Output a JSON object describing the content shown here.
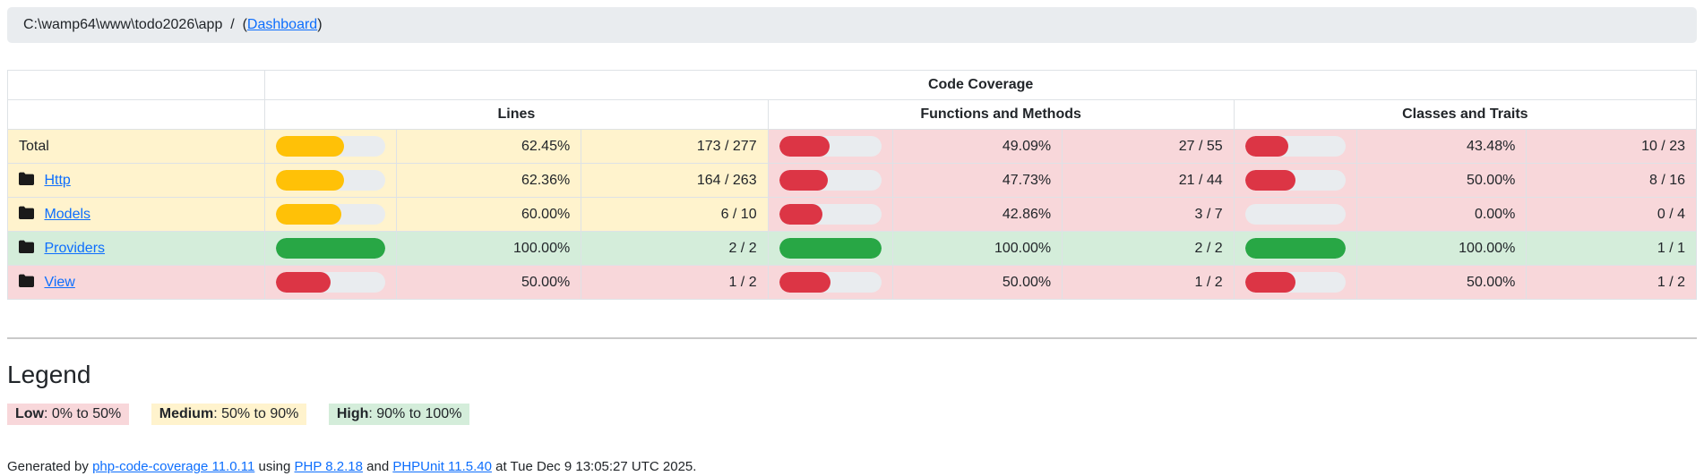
{
  "breadcrumb": {
    "path": "C:\\wamp64\\www\\todo2026\\app",
    "separator": "  /  ",
    "paren_open": "(",
    "link_label": "Dashboard",
    "paren_close": ")"
  },
  "table": {
    "header_group": "Code Coverage",
    "columns": [
      "Lines",
      "Functions and Methods",
      "Classes and Traits"
    ],
    "rows": [
      {
        "name": "Total",
        "is_link": false,
        "has_icon": false,
        "name_level": "medium",
        "lines": {
          "pct": "62.45%",
          "ratio": "173 / 277",
          "value": 62.45,
          "level": "medium"
        },
        "functions": {
          "pct": "49.09%",
          "ratio": "27 / 55",
          "value": 49.09,
          "level": "low"
        },
        "classes": {
          "pct": "43.48%",
          "ratio": "10 / 23",
          "value": 43.48,
          "level": "low"
        }
      },
      {
        "name": "Http",
        "is_link": true,
        "has_icon": true,
        "name_level": "medium",
        "lines": {
          "pct": "62.36%",
          "ratio": "164 / 263",
          "value": 62.36,
          "level": "medium"
        },
        "functions": {
          "pct": "47.73%",
          "ratio": "21 / 44",
          "value": 47.73,
          "level": "low"
        },
        "classes": {
          "pct": "50.00%",
          "ratio": "8 / 16",
          "value": 50.0,
          "level": "low"
        }
      },
      {
        "name": "Models",
        "is_link": true,
        "has_icon": true,
        "name_level": "medium",
        "lines": {
          "pct": "60.00%",
          "ratio": "6 / 10",
          "value": 60.0,
          "level": "medium"
        },
        "functions": {
          "pct": "42.86%",
          "ratio": "3 / 7",
          "value": 42.86,
          "level": "low"
        },
        "classes": {
          "pct": "0.00%",
          "ratio": "0 / 4",
          "value": 0.0,
          "level": "low"
        }
      },
      {
        "name": "Providers",
        "is_link": true,
        "has_icon": true,
        "name_level": "high",
        "lines": {
          "pct": "100.00%",
          "ratio": "2 / 2",
          "value": 100.0,
          "level": "high"
        },
        "functions": {
          "pct": "100.00%",
          "ratio": "2 / 2",
          "value": 100.0,
          "level": "high"
        },
        "classes": {
          "pct": "100.00%",
          "ratio": "1 / 1",
          "value": 100.0,
          "level": "high"
        }
      },
      {
        "name": "View",
        "is_link": true,
        "has_icon": true,
        "name_level": "low",
        "lines": {
          "pct": "50.00%",
          "ratio": "1 / 2",
          "value": 50.0,
          "level": "low"
        },
        "functions": {
          "pct": "50.00%",
          "ratio": "1 / 2",
          "value": 50.0,
          "level": "low"
        },
        "classes": {
          "pct": "50.00%",
          "ratio": "1 / 2",
          "value": 50.0,
          "level": "low"
        }
      }
    ]
  },
  "legend": {
    "title": "Legend",
    "items": [
      {
        "label": "Low",
        "range": ": 0% to 50%",
        "level": "low"
      },
      {
        "label": "Medium",
        "range": ": 50% to 90%",
        "level": "medium"
      },
      {
        "label": "High",
        "range": ": 90% to 100%",
        "level": "high"
      }
    ]
  },
  "footer": {
    "generated_by": "Generated by ",
    "coverage_link": "php-code-coverage 11.0.11",
    "using": " using ",
    "php_link": "PHP 8.2.18",
    "and_text": " and ",
    "phpunit_link": "PHPUnit 11.5.40",
    "timestamp": " at Tue Dec 9 13:05:27 UTC 2025."
  },
  "colors": {
    "low_bg": "#f8d7da",
    "medium_bg": "#fff3cd",
    "high_bg": "#d4edda",
    "bar_low": "#dc3545",
    "bar_medium": "#ffc107",
    "bar_high": "#28a745",
    "bar_track": "#e9ecef",
    "link": "#0d6efd",
    "breadcrumb_bg": "#e9ecef"
  }
}
